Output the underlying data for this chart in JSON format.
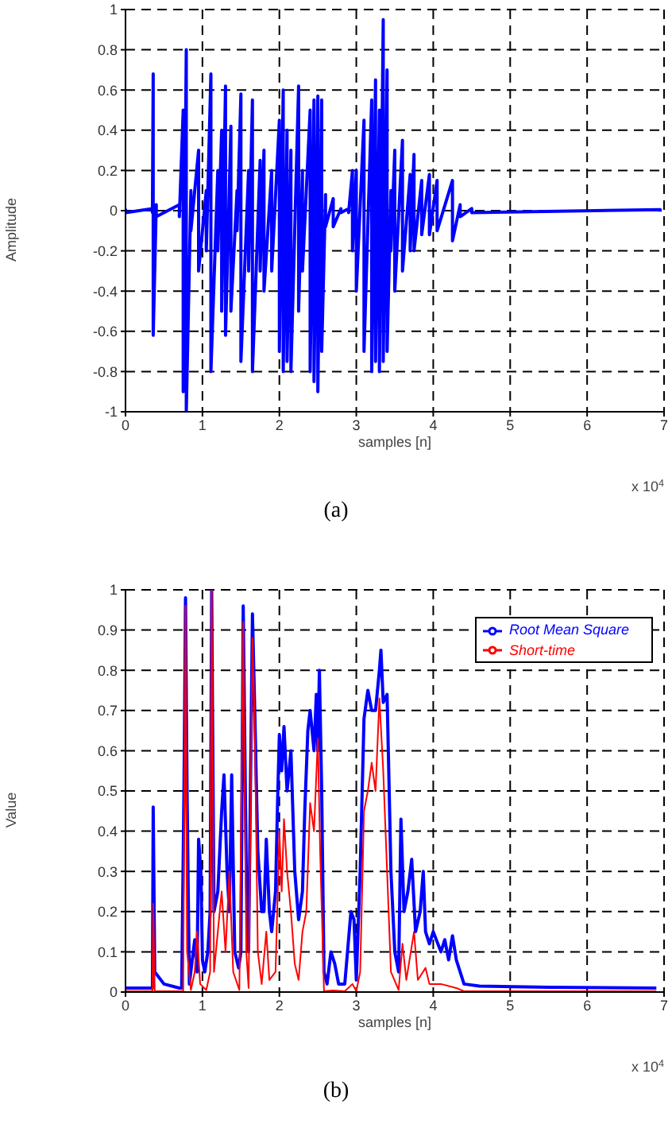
{
  "chart_data": [
    {
      "type": "line",
      "xlabel": "samples [n]",
      "ylabel": "Amplitude",
      "annotations": [
        "x 10$^{4}$",
        "(a)"
      ],
      "xlim": [
        0,
        7
      ],
      "xticks": [
        0,
        1,
        2,
        3,
        4,
        5,
        6,
        7
      ],
      "ylim": [
        -1,
        1
      ],
      "yticks": [
        -1,
        -0.8,
        -0.6,
        -0.4,
        -0.2,
        0,
        0.2,
        0.4,
        0.6,
        0.8,
        1
      ],
      "grid": true,
      "series": [
        {
          "color": "#0000ff",
          "x": [
            0,
            0,
            0.35,
            0.35,
            0.36,
            0.36,
            0.4,
            0.4,
            0.7,
            0.7,
            0.75,
            0.75,
            0.79,
            0.79,
            0.85,
            0.85,
            0.95,
            0.95,
            1.05,
            1.05,
            1.11,
            1.11,
            1.2,
            1.2,
            1.25,
            1.25,
            1.3,
            1.3,
            1.37,
            1.37,
            1.45,
            1.45,
            1.5,
            1.5,
            1.6,
            1.6,
            1.65,
            1.65,
            1.75,
            1.75,
            1.8,
            1.8,
            1.9,
            1.9,
            2.0,
            2.0,
            2.05,
            2.05,
            2.1,
            2.1,
            2.15,
            2.15,
            2.25,
            2.25,
            2.3,
            2.3,
            2.4,
            2.4,
            2.45,
            2.45,
            2.5,
            2.5,
            2.55,
            2.55,
            2.6,
            2.6,
            2.7,
            2.7,
            2.8,
            2.8,
            2.9,
            2.9,
            2.95,
            2.95,
            3.0,
            3.0,
            3.1,
            3.1,
            3.2,
            3.2,
            3.25,
            3.25,
            3.3,
            3.3,
            3.35,
            3.35,
            3.4,
            3.4,
            3.45,
            3.45,
            3.5,
            3.5,
            3.6,
            3.6,
            3.7,
            3.7,
            3.75,
            3.75,
            3.85,
            3.85,
            3.95,
            3.95,
            4.05,
            4.05,
            4.25,
            4.25,
            4.35,
            4.35,
            4.5,
            4.5,
            6.95,
            6.95
          ],
          "values": [
            0.01,
            -0.01,
            0.01,
            -0.01,
            0.68,
            -0.62,
            0.03,
            -0.03,
            0.03,
            -0.03,
            0.5,
            -0.9,
            0.8,
            -1.0,
            0.1,
            -0.1,
            0.3,
            -0.3,
            0.1,
            -0.2,
            0.68,
            -0.8,
            0.2,
            -0.2,
            0.4,
            -0.5,
            0.62,
            -0.62,
            0.42,
            -0.5,
            0.1,
            -0.1,
            0.58,
            -0.75,
            0.2,
            -0.3,
            0.55,
            -0.8,
            0.25,
            -0.3,
            0.3,
            -0.4,
            0.2,
            -0.3,
            0.45,
            -0.7,
            0.6,
            -0.8,
            0.4,
            -0.75,
            0.3,
            -0.8,
            0.62,
            -0.5,
            0.2,
            -0.3,
            0.5,
            -0.8,
            0.55,
            -0.85,
            0.57,
            -0.9,
            0.55,
            -0.7,
            0.08,
            -0.08,
            0.06,
            -0.08,
            0.01,
            -0.01,
            0.01,
            -0.01,
            0.2,
            -0.2,
            0.2,
            -0.4,
            0.45,
            -0.7,
            0.55,
            -0.8,
            0.65,
            -0.75,
            0.5,
            -0.8,
            0.95,
            -0.75,
            0.7,
            -0.7,
            0.1,
            -0.2,
            0.3,
            -0.4,
            0.35,
            -0.3,
            0.18,
            -0.2,
            0.28,
            -0.2,
            0.15,
            -0.12,
            0.18,
            -0.12,
            0.15,
            -0.1,
            0.15,
            -0.15,
            0.03,
            -0.03,
            0.01,
            -0.01,
            0.005,
            -0.005
          ]
        }
      ]
    },
    {
      "type": "line",
      "xlabel": "samples [n]",
      "ylabel": "Value",
      "annotations": [
        "x 10$^{4}$",
        "(b)"
      ],
      "xlim": [
        0,
        7
      ],
      "xticks": [
        0,
        1,
        2,
        3,
        4,
        5,
        6,
        7
      ],
      "ylim": [
        0,
        1
      ],
      "yticks": [
        0,
        0.1,
        0.2,
        0.3,
        0.4,
        0.5,
        0.6,
        0.7,
        0.8,
        0.9,
        1
      ],
      "grid": true,
      "legend": "top right",
      "series": [
        {
          "name": "Root Mean Square",
          "color": "#0000ff",
          "x": [
            0,
            0.35,
            0.36,
            0.38,
            0.42,
            0.5,
            0.7,
            0.73,
            0.76,
            0.78,
            0.8,
            0.83,
            0.88,
            0.9,
            0.93,
            0.95,
            0.98,
            1.0,
            1.03,
            1.07,
            1.1,
            1.12,
            1.15,
            1.2,
            1.25,
            1.28,
            1.32,
            1.35,
            1.38,
            1.42,
            1.47,
            1.5,
            1.53,
            1.57,
            1.6,
            1.65,
            1.68,
            1.72,
            1.77,
            1.8,
            1.83,
            1.87,
            1.9,
            1.95,
            1.98,
            2.0,
            2.03,
            2.06,
            2.1,
            2.15,
            2.2,
            2.25,
            2.3,
            2.33,
            2.37,
            2.4,
            2.45,
            2.48,
            2.5,
            2.52,
            2.55,
            2.58,
            2.62,
            2.67,
            2.72,
            2.77,
            2.85,
            2.93,
            2.97,
            3.0,
            3.05,
            3.1,
            3.15,
            3.2,
            3.25,
            3.3,
            3.32,
            3.35,
            3.4,
            3.45,
            3.5,
            3.55,
            3.58,
            3.62,
            3.67,
            3.72,
            3.77,
            3.83,
            3.87,
            3.9,
            3.95,
            4.0,
            4.1,
            4.15,
            4.2,
            4.25,
            4.3,
            4.4,
            4.6,
            5.5,
            6.9
          ],
          "values": [
            0.01,
            0.01,
            0.46,
            0.05,
            0.04,
            0.02,
            0.01,
            0.01,
            0.5,
            0.98,
            0.5,
            0.02,
            0.1,
            0.13,
            0.05,
            0.38,
            0.3,
            0.08,
            0.05,
            0.1,
            0.2,
            1.0,
            0.2,
            0.25,
            0.45,
            0.54,
            0.3,
            0.2,
            0.54,
            0.1,
            0.06,
            0.1,
            0.96,
            0.3,
            0.1,
            0.94,
            0.7,
            0.35,
            0.2,
            0.2,
            0.38,
            0.2,
            0.15,
            0.25,
            0.5,
            0.64,
            0.55,
            0.66,
            0.5,
            0.6,
            0.3,
            0.18,
            0.25,
            0.45,
            0.65,
            0.7,
            0.6,
            0.74,
            0.6,
            0.8,
            0.5,
            0.05,
            0.02,
            0.1,
            0.07,
            0.02,
            0.02,
            0.2,
            0.18,
            0.03,
            0.3,
            0.68,
            0.75,
            0.7,
            0.7,
            0.8,
            0.85,
            0.72,
            0.74,
            0.3,
            0.1,
            0.05,
            0.43,
            0.2,
            0.25,
            0.33,
            0.15,
            0.2,
            0.3,
            0.15,
            0.12,
            0.15,
            0.1,
            0.13,
            0.08,
            0.14,
            0.08,
            0.02,
            0.015,
            0.012,
            0.01
          ]
        },
        {
          "name": "Short-time",
          "color": "#ff0000",
          "x": [
            0,
            0.35,
            0.36,
            0.38,
            0.75,
            0.78,
            0.8,
            0.85,
            0.9,
            0.93,
            0.97,
            1.05,
            1.1,
            1.12,
            1.15,
            1.2,
            1.25,
            1.3,
            1.35,
            1.4,
            1.48,
            1.53,
            1.57,
            1.6,
            1.65,
            1.68,
            1.72,
            1.77,
            1.83,
            1.87,
            1.95,
            2.0,
            2.03,
            2.06,
            2.1,
            2.15,
            2.2,
            2.25,
            2.3,
            2.35,
            2.4,
            2.45,
            2.5,
            2.53,
            2.58,
            2.7,
            2.85,
            2.95,
            3.0,
            3.05,
            3.1,
            3.15,
            3.2,
            3.25,
            3.3,
            3.35,
            3.4,
            3.45,
            3.55,
            3.6,
            3.65,
            3.75,
            3.8,
            3.9,
            3.95,
            4.1,
            4.3,
            4.4,
            6.9
          ],
          "values": [
            0.002,
            0.002,
            0.22,
            0.002,
            0.002,
            0.96,
            0.1,
            0.005,
            0.05,
            0.15,
            0.02,
            0.005,
            0.05,
            1.0,
            0.05,
            0.15,
            0.25,
            0.1,
            0.3,
            0.05,
            0.005,
            0.92,
            0.1,
            0.01,
            0.88,
            0.66,
            0.1,
            0.02,
            0.15,
            0.03,
            0.05,
            0.4,
            0.25,
            0.43,
            0.3,
            0.2,
            0.07,
            0.03,
            0.15,
            0.2,
            0.47,
            0.4,
            0.63,
            0.35,
            0.002,
            0.004,
            0.002,
            0.02,
            0.002,
            0.05,
            0.45,
            0.5,
            0.57,
            0.5,
            0.73,
            0.55,
            0.3,
            0.05,
            0.005,
            0.12,
            0.03,
            0.15,
            0.03,
            0.06,
            0.02,
            0.02,
            0.01,
            0.002,
            0.002
          ]
        }
      ]
    }
  ]
}
